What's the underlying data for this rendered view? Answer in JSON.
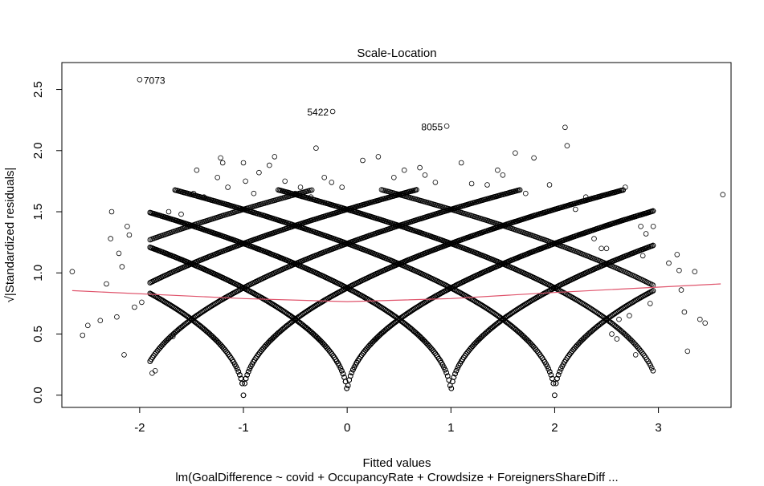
{
  "chart_data": {
    "type": "scatter",
    "title": "Scale-Location",
    "xlabel": "Fitted values",
    "ylabel": "√|Standardized residuals|",
    "subtitle": "lm(GoalDifference ~ covid + OccupancyRate + Crowdsize + ForeignersShareDiff ...",
    "xlim": [
      -2.75,
      3.7
    ],
    "ylim": [
      -0.1,
      2.72
    ],
    "x_ticks": [
      "-2",
      "-1",
      "0",
      "1",
      "2",
      "3"
    ],
    "y_ticks": [
      "0.0",
      "0.5",
      "1.0",
      "1.5",
      "2.0",
      "2.5"
    ],
    "grid": false,
    "legend": "none",
    "point_color": "#000000",
    "smooth_color": "#DF536B",
    "labeled_points": [
      {
        "label": "7073",
        "x": -2.0,
        "y": 2.58
      },
      {
        "label": "5422",
        "x": -0.14,
        "y": 2.32
      },
      {
        "label": "8055",
        "x": 0.96,
        "y": 2.2
      }
    ],
    "arc_families": {
      "centers": [
        -2,
        -1,
        0,
        1,
        2
      ],
      "offsets": [
        0,
        1,
        2
      ],
      "x_range": [
        -1.9,
        2.95
      ]
    },
    "outlier_points": [
      [
        -2.65,
        1.01
      ],
      [
        -2.55,
        0.49
      ],
      [
        -2.5,
        0.57
      ],
      [
        -2.38,
        0.61
      ],
      [
        -2.32,
        0.91
      ],
      [
        -2.28,
        1.28
      ],
      [
        -2.27,
        1.5
      ],
      [
        -2.22,
        0.64
      ],
      [
        -2.2,
        1.16
      ],
      [
        -2.17,
        1.05
      ],
      [
        -2.15,
        0.33
      ],
      [
        -2.12,
        1.38
      ],
      [
        -2.1,
        1.31
      ],
      [
        -2.05,
        0.72
      ],
      [
        -1.98,
        0.76
      ],
      [
        -1.88,
        0.18
      ],
      [
        -1.85,
        0.2
      ],
      [
        -1.72,
        1.5
      ],
      [
        -1.68,
        0.48
      ],
      [
        -1.6,
        1.48
      ],
      [
        -1.48,
        1.65
      ],
      [
        -1.45,
        1.84
      ],
      [
        -1.38,
        1.62
      ],
      [
        -1.25,
        1.78
      ],
      [
        -1.22,
        1.94
      ],
      [
        -1.2,
        1.9
      ],
      [
        -1.15,
        1.7
      ],
      [
        -1.0,
        1.9
      ],
      [
        -0.98,
        1.75
      ],
      [
        -0.9,
        1.65
      ],
      [
        -0.85,
        1.82
      ],
      [
        -0.75,
        1.88
      ],
      [
        -0.7,
        1.95
      ],
      [
        -0.6,
        1.75
      ],
      [
        -0.5,
        1.65
      ],
      [
        -0.45,
        1.7
      ],
      [
        -0.35,
        1.62
      ],
      [
        -0.3,
        2.02
      ],
      [
        -0.22,
        1.78
      ],
      [
        -0.15,
        1.74
      ],
      [
        -0.05,
        1.7
      ],
      [
        0.15,
        1.92
      ],
      [
        0.3,
        1.95
      ],
      [
        0.45,
        1.78
      ],
      [
        0.55,
        1.84
      ],
      [
        0.7,
        1.86
      ],
      [
        0.75,
        1.8
      ],
      [
        0.85,
        1.74
      ],
      [
        1.1,
        1.9
      ],
      [
        1.2,
        1.73
      ],
      [
        1.35,
        1.72
      ],
      [
        1.45,
        1.84
      ],
      [
        1.5,
        1.8
      ],
      [
        1.62,
        1.98
      ],
      [
        1.72,
        1.65
      ],
      [
        1.8,
        1.94
      ],
      [
        1.95,
        1.72
      ],
      [
        2.1,
        2.19
      ],
      [
        2.12,
        2.04
      ],
      [
        2.2,
        1.52
      ],
      [
        2.3,
        1.62
      ],
      [
        2.38,
        1.28
      ],
      [
        2.45,
        1.2
      ],
      [
        2.5,
        1.2
      ],
      [
        2.55,
        0.5
      ],
      [
        2.6,
        0.46
      ],
      [
        2.62,
        0.62
      ],
      [
        2.68,
        1.7
      ],
      [
        2.72,
        0.65
      ],
      [
        2.78,
        0.33
      ],
      [
        2.83,
        1.38
      ],
      [
        2.85,
        1.14
      ],
      [
        2.88,
        1.32
      ],
      [
        2.92,
        0.75
      ],
      [
        2.95,
        1.38
      ],
      [
        3.1,
        1.08
      ],
      [
        3.18,
        1.15
      ],
      [
        3.2,
        1.02
      ],
      [
        3.22,
        0.86
      ],
      [
        3.25,
        0.68
      ],
      [
        3.28,
        0.36
      ],
      [
        3.35,
        1.01
      ],
      [
        3.4,
        0.62
      ],
      [
        3.45,
        0.59
      ],
      [
        3.62,
        1.64
      ]
    ],
    "smooth_line": {
      "x": [
        -2.65,
        -1.0,
        0.0,
        1.0,
        2.0,
        3.6
      ],
      "y": [
        0.855,
        0.79,
        0.765,
        0.79,
        0.84,
        0.91
      ]
    }
  }
}
